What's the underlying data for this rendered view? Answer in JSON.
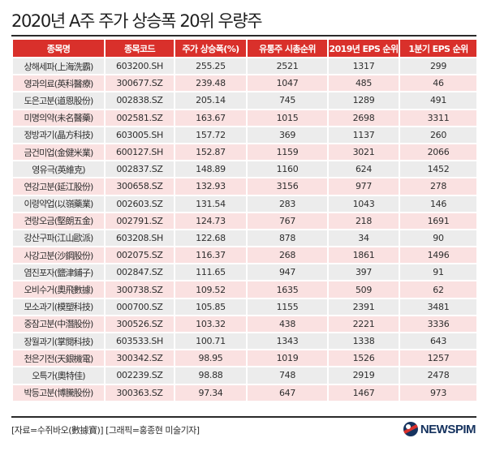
{
  "title": "2020년 A주 주가 상승폭 20위 우량주",
  "table": {
    "headers": [
      "종목명",
      "종목코드",
      "주가 상승폭(%)",
      "유통주 시총순위",
      "2019년 EPS 순위",
      "1분기 EPS 순위"
    ],
    "rows": [
      [
        "상해세파(上海洗霸)",
        "603200.SH",
        "255.25",
        "2521",
        "1317",
        "299"
      ],
      [
        "영과의료(英科醫療)",
        "300677.SZ",
        "239.48",
        "1047",
        "485",
        "46"
      ],
      [
        "도은고분(道恩股份)",
        "002838.SZ",
        "205.14",
        "745",
        "1289",
        "491"
      ],
      [
        "미명의약(未名醫藥)",
        "002581.SZ",
        "163.67",
        "1015",
        "2698",
        "3311"
      ],
      [
        "정방과기(晶方科技)",
        "603005.SH",
        "157.72",
        "369",
        "1137",
        "260"
      ],
      [
        "금건미업(金健米業)",
        "600127.SH",
        "152.87",
        "1159",
        "3021",
        "2066"
      ],
      [
        "영유극(英維克)",
        "002837.SZ",
        "148.89",
        "1160",
        "624",
        "1452"
      ],
      [
        "연강고분(延江股份)",
        "300658.SZ",
        "132.93",
        "3156",
        "977",
        "278"
      ],
      [
        "이령약업(以嶺藥業)",
        "002603.SZ",
        "131.54",
        "283",
        "1043",
        "146"
      ],
      [
        "견랑오금(堅朗五金)",
        "002791.SZ",
        "124.73",
        "767",
        "218",
        "1691"
      ],
      [
        "강산구파(江山歐派)",
        "603208.SH",
        "122.68",
        "878",
        "34",
        "90"
      ],
      [
        "사강고분(沙鋼股份)",
        "002075.SZ",
        "116.37",
        "268",
        "1861",
        "1496"
      ],
      [
        "염진포자(鹽津鋪子)",
        "002847.SZ",
        "111.65",
        "947",
        "397",
        "91"
      ],
      [
        "오비수거(奧飛數據)",
        "300738.SZ",
        "109.52",
        "1635",
        "509",
        "62"
      ],
      [
        "모소과기(模塑科技)",
        "000700.SZ",
        "105.85",
        "1155",
        "2391",
        "3481"
      ],
      [
        "중잠고분(中潛股份)",
        "300526.SZ",
        "103.32",
        "438",
        "2221",
        "3336"
      ],
      [
        "장월과기(掌閱科技)",
        "603533.SH",
        "100.71",
        "1343",
        "1338",
        "643"
      ],
      [
        "천은기전(天銀機電)",
        "300342.SZ",
        "98.95",
        "1019",
        "1526",
        "1257"
      ],
      [
        "오특가(奧特佳)",
        "002239.SZ",
        "98.88",
        "748",
        "2919",
        "2478"
      ],
      [
        "박등고분(博騰股份)",
        "300363.SZ",
        "97.34",
        "647",
        "1467",
        "973"
      ]
    ]
  },
  "footer": {
    "source": "[자료=수쥐바오(數據寶)] [그래픽=홍종현 미술기자]",
    "logo_text": "NEWSPIM"
  },
  "colors": {
    "header_red": "#d9302b",
    "row_gray": "#ececec",
    "row_pink": "#fae1e1",
    "logo_navy": "#16335f"
  }
}
